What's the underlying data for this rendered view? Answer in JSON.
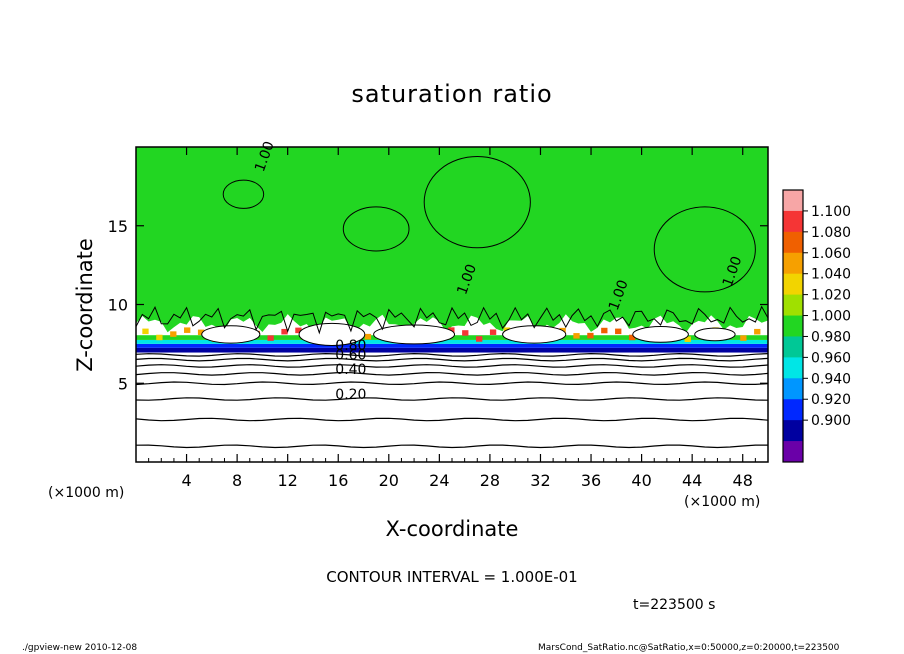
{
  "title": "saturation ratio",
  "axes": {
    "xlabel": "X-coordinate",
    "ylabel": "Z-coordinate",
    "x_unit": "(×1000 m)",
    "x_unit_right": "(×1000 m)"
  },
  "contour_interval_text": "CONTOUR INTERVAL = 1.000E-01",
  "time_text": "t=223500 s",
  "footer": {
    "left": "./gpview-new  2010-12-08",
    "right": "MarsCond_SatRatio.nc@SatRatio,x=0:50000,z=0:20000,t=223500"
  },
  "chart_data": {
    "type": "heatmap",
    "title": "saturation ratio",
    "xlabel": "X-coordinate",
    "ylabel": "Z-coordinate",
    "xlim": [
      0,
      50
    ],
    "ylim": [
      0,
      20
    ],
    "x_ticks": [
      4,
      8,
      12,
      16,
      20,
      24,
      28,
      32,
      36,
      40,
      44,
      48
    ],
    "y_ticks": [
      5,
      10,
      15
    ],
    "colorbar": {
      "levels": [
        "1.100",
        "1.080",
        "1.060",
        "1.040",
        "1.020",
        "1.000",
        "0.980",
        "0.960",
        "0.940",
        "0.920",
        "0.900"
      ],
      "colors": [
        "#f7a6a6",
        "#f53535",
        "#f06000",
        "#f6a000",
        "#f2d400",
        "#a0e000",
        "#22d622",
        "#00c896",
        "#00e6e6",
        "#0096ff",
        "#0028ff",
        "#0000a0",
        "#6a00a8"
      ]
    },
    "contour_labels": [
      {
        "text": "1.00",
        "x": 10.5,
        "y": 19.3
      },
      {
        "text": "1.00",
        "x": 26.5,
        "y": 11.5
      },
      {
        "text": "1.00",
        "x": 38.5,
        "y": 10.5
      },
      {
        "text": "1.00",
        "x": 47.5,
        "y": 12.0
      },
      {
        "text": "0.80",
        "x": 17.0,
        "y": 7.1
      },
      {
        "text": "0.60",
        "x": 17.0,
        "y": 6.5
      },
      {
        "text": "0.40",
        "x": 17.0,
        "y": 5.6
      },
      {
        "text": "0.20",
        "x": 17.0,
        "y": 4.0
      }
    ],
    "fill_regions": {
      "upper_value": 1.0,
      "band_z": [
        7.0,
        8.8
      ],
      "lower_region": "white (below 0.90)"
    },
    "contour_interval": 0.1,
    "time": 223500,
    "grid": false
  }
}
